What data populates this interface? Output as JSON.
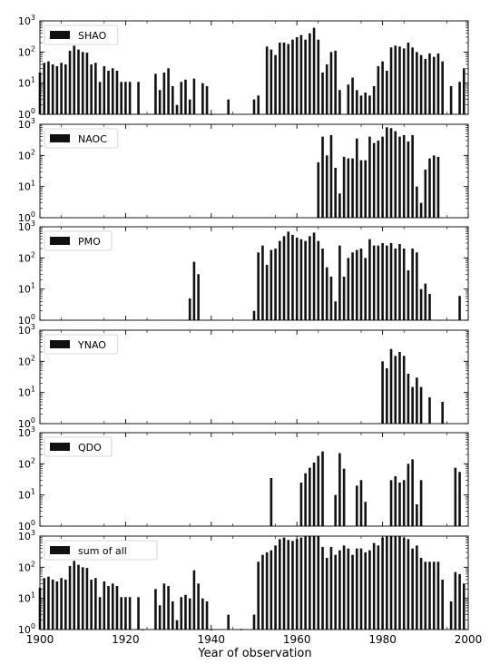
{
  "figure": {
    "xlabel": "Year of observation",
    "xticks": [
      1900,
      1920,
      1940,
      1960,
      1980,
      2000
    ],
    "xlim": [
      1900,
      2000
    ],
    "yscale": "log",
    "ylim": [
      1,
      1000
    ],
    "bar_color": "#111111"
  },
  "chart_data": [
    {
      "type": "bar",
      "legend": "SHAO",
      "x": [
        1900,
        1901,
        1902,
        1903,
        1904,
        1905,
        1906,
        1907,
        1908,
        1909,
        1910,
        1911,
        1912,
        1913,
        1914,
        1915,
        1916,
        1917,
        1918,
        1919,
        1920,
        1921,
        1923,
        1927,
        1928,
        1929,
        1930,
        1931,
        1932,
        1933,
        1934,
        1935,
        1936,
        1938,
        1939,
        1940,
        1944,
        1950,
        1951,
        1953,
        1954,
        1955,
        1956,
        1957,
        1958,
        1959,
        1960,
        1961,
        1962,
        1963,
        1964,
        1965,
        1966,
        1967,
        1968,
        1969,
        1970,
        1972,
        1973,
        1974,
        1975,
        1976,
        1977,
        1978,
        1979,
        1980,
        1981,
        1982,
        1983,
        1984,
        1985,
        1986,
        1987,
        1988,
        1989,
        1990,
        1991,
        1992,
        1993,
        1994,
        1996,
        1998,
        1999
      ],
      "values": [
        22,
        45,
        50,
        40,
        35,
        45,
        40,
        110,
        160,
        120,
        100,
        95,
        40,
        45,
        11,
        35,
        25,
        30,
        25,
        11,
        11,
        11,
        11,
        20,
        6,
        22,
        30,
        8,
        2,
        11,
        13,
        3,
        14,
        10,
        8,
        1,
        3,
        3,
        4,
        150,
        120,
        80,
        200,
        200,
        180,
        250,
        300,
        350,
        250,
        400,
        600,
        250,
        22,
        40,
        100,
        110,
        6,
        9,
        15,
        6,
        4,
        5,
        4,
        8,
        35,
        50,
        25,
        140,
        160,
        150,
        130,
        200,
        140,
        100,
        80,
        60,
        90,
        70,
        90,
        50,
        8,
        11,
        30
      ]
    },
    {
      "type": "bar",
      "legend": "NAOC",
      "x": [
        1965,
        1966,
        1967,
        1968,
        1969,
        1970,
        1971,
        1972,
        1973,
        1974,
        1975,
        1976,
        1977,
        1978,
        1979,
        1980,
        1981,
        1982,
        1983,
        1984,
        1985,
        1986,
        1987,
        1988,
        1989,
        1990,
        1991,
        1992,
        1993
      ],
      "values": [
        60,
        400,
        100,
        450,
        40,
        6,
        90,
        80,
        80,
        350,
        70,
        70,
        400,
        250,
        300,
        400,
        800,
        750,
        600,
        400,
        450,
        280,
        450,
        10,
        3,
        35,
        80,
        100,
        90
      ]
    },
    {
      "type": "bar",
      "legend": "PMO",
      "x": [
        1935,
        1936,
        1937,
        1950,
        1951,
        1952,
        1953,
        1954,
        1955,
        1956,
        1957,
        1958,
        1959,
        1960,
        1961,
        1962,
        1963,
        1964,
        1965,
        1966,
        1967,
        1968,
        1969,
        1970,
        1971,
        1972,
        1973,
        1974,
        1975,
        1976,
        1977,
        1978,
        1979,
        1980,
        1981,
        1982,
        1983,
        1984,
        1985,
        1986,
        1987,
        1988,
        1989,
        1990,
        1991,
        1998
      ],
      "values": [
        5,
        75,
        30,
        2,
        150,
        250,
        60,
        180,
        200,
        350,
        500,
        700,
        550,
        450,
        400,
        350,
        500,
        650,
        350,
        200,
        50,
        25,
        4,
        250,
        25,
        100,
        150,
        180,
        200,
        100,
        400,
        250,
        250,
        300,
        250,
        300,
        200,
        280,
        200,
        40,
        200,
        150,
        10,
        15,
        7,
        6
      ]
    },
    {
      "type": "bar",
      "legend": "YNAO",
      "x": [
        1980,
        1981,
        1982,
        1983,
        1984,
        1985,
        1986,
        1987,
        1988,
        1989,
        1991,
        1994
      ],
      "values": [
        100,
        60,
        250,
        150,
        200,
        150,
        40,
        15,
        30,
        15,
        7,
        5
      ]
    },
    {
      "type": "bar",
      "legend": "QDO",
      "x": [
        1954,
        1961,
        1962,
        1963,
        1964,
        1965,
        1966,
        1969,
        1970,
        1971,
        1974,
        1975,
        1976,
        1982,
        1983,
        1984,
        1985,
        1986,
        1987,
        1988,
        1989,
        1997,
        1998
      ],
      "values": [
        35,
        25,
        50,
        75,
        110,
        180,
        250,
        10,
        220,
        70,
        20,
        30,
        6,
        30,
        40,
        25,
        30,
        100,
        140,
        5,
        30,
        75,
        55
      ]
    },
    {
      "type": "bar",
      "legend": "sum of all",
      "x": [
        1900,
        1901,
        1902,
        1903,
        1904,
        1905,
        1906,
        1907,
        1908,
        1909,
        1910,
        1911,
        1912,
        1913,
        1914,
        1915,
        1916,
        1917,
        1918,
        1919,
        1920,
        1921,
        1923,
        1924,
        1927,
        1928,
        1929,
        1930,
        1931,
        1932,
        1933,
        1934,
        1935,
        1936,
        1937,
        1938,
        1939,
        1940,
        1944,
        1947,
        1950,
        1951,
        1952,
        1953,
        1954,
        1955,
        1956,
        1957,
        1958,
        1959,
        1960,
        1961,
        1962,
        1963,
        1964,
        1965,
        1966,
        1967,
        1968,
        1969,
        1970,
        1971,
        1972,
        1973,
        1974,
        1975,
        1976,
        1977,
        1978,
        1979,
        1980,
        1981,
        1982,
        1983,
        1984,
        1985,
        1986,
        1987,
        1988,
        1989,
        1990,
        1991,
        1992,
        1993,
        1994,
        1996,
        1997,
        1998,
        1999
      ],
      "values": [
        22,
        45,
        50,
        40,
        35,
        45,
        40,
        110,
        160,
        120,
        100,
        95,
        40,
        45,
        11,
        35,
        25,
        30,
        25,
        11,
        11,
        11,
        11,
        1,
        20,
        6,
        30,
        25,
        8,
        2,
        11,
        13,
        10,
        80,
        30,
        10,
        8,
        1,
        3,
        1,
        3,
        150,
        250,
        300,
        350,
        500,
        800,
        900,
        750,
        700,
        800,
        900,
        1000,
        1300,
        1300,
        1300,
        450,
        200,
        450,
        250,
        350,
        500,
        400,
        250,
        400,
        400,
        300,
        350,
        600,
        500,
        900,
        1200,
        1300,
        1100,
        1000,
        900,
        800,
        400,
        500,
        200,
        150,
        150,
        150,
        150,
        40,
        8,
        70,
        60,
        30
      ]
    }
  ]
}
